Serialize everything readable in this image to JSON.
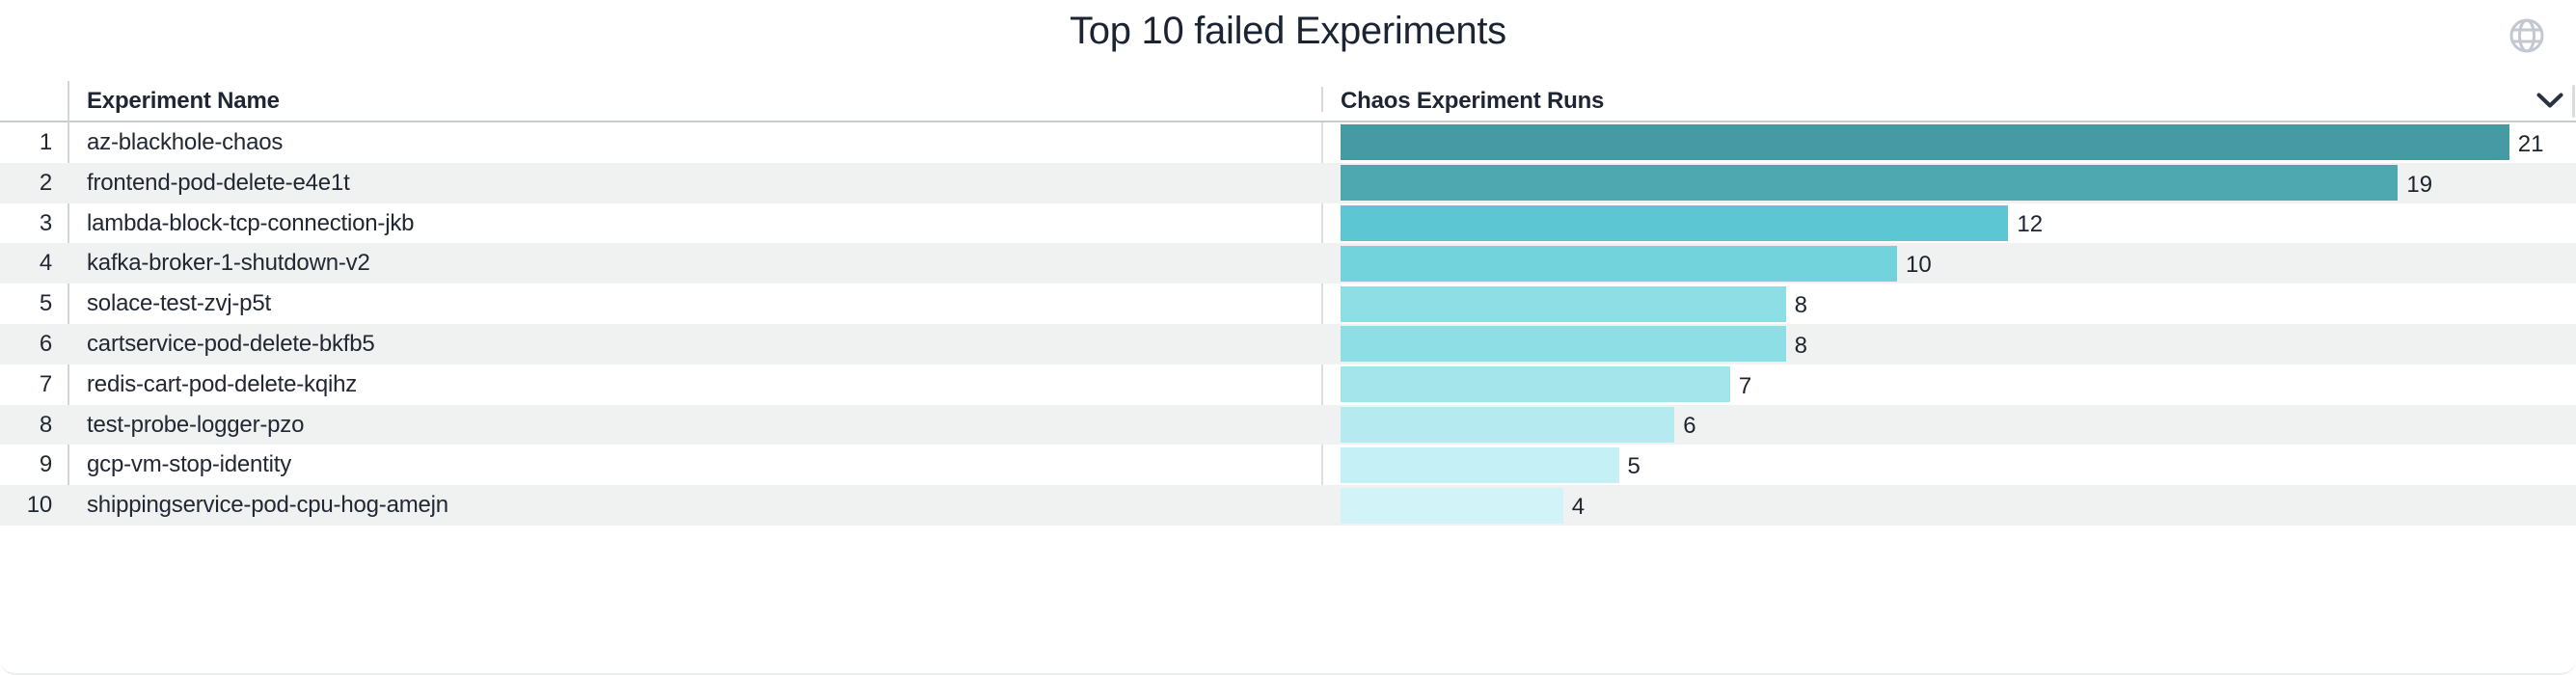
{
  "widget": {
    "title": "Top 10 failed Experiments",
    "columns": [
      "Experiment Name",
      "Chaos Experiment Runs"
    ],
    "icons": {
      "top_right": "globe-icon",
      "runs_column": "chevron-down-icon"
    }
  },
  "colors": {
    "title_text": "#1b2433",
    "header_text": "#1f2633",
    "body_text": "#212733",
    "row_stripe": "#f0f2f2",
    "header_border": "#c9ccce",
    "column_divider": "#d2d5d6",
    "globe_icon": "#c3c7d0",
    "chevron_icon": "#2a3140"
  },
  "chart_data": {
    "type": "bar",
    "orientation": "horizontal",
    "title": "Top 10 failed Experiments",
    "category_column": "Experiment Name",
    "x_column": "Chaos Experiment Runs",
    "row_numbers": [
      1,
      2,
      3,
      4,
      5,
      6,
      7,
      8,
      9,
      10
    ],
    "categories": [
      "az-blackhole-chaos",
      "frontend-pod-delete-e4e1t",
      "lambda-block-tcp-connection-jkb",
      "kafka-broker-1-shutdown-v2",
      "solace-test-zvj-p5t",
      "cartservice-pod-delete-bkfb5",
      "redis-cart-pod-delete-kqihz",
      "test-probe-logger-pzo",
      "gcp-vm-stop-identity",
      "shippingservice-pod-cpu-hog-amejn"
    ],
    "values": [
      21,
      19,
      12,
      10,
      8,
      8,
      7,
      6,
      5,
      4
    ],
    "value_labels": [
      "21",
      "19",
      "12",
      "10",
      "8",
      "8",
      "7",
      "6",
      "5",
      "4"
    ],
    "bar_colors": [
      "#459aa3",
      "#4da8b0",
      "#5cc7d2",
      "#73d3dd",
      "#8edee6",
      "#8edee6",
      "#a3e5eb",
      "#b5eaf0",
      "#c4f0f6",
      "#d2f4f9"
    ],
    "xlim": [
      0,
      22.2
    ],
    "legend": "none",
    "grid": "off"
  }
}
